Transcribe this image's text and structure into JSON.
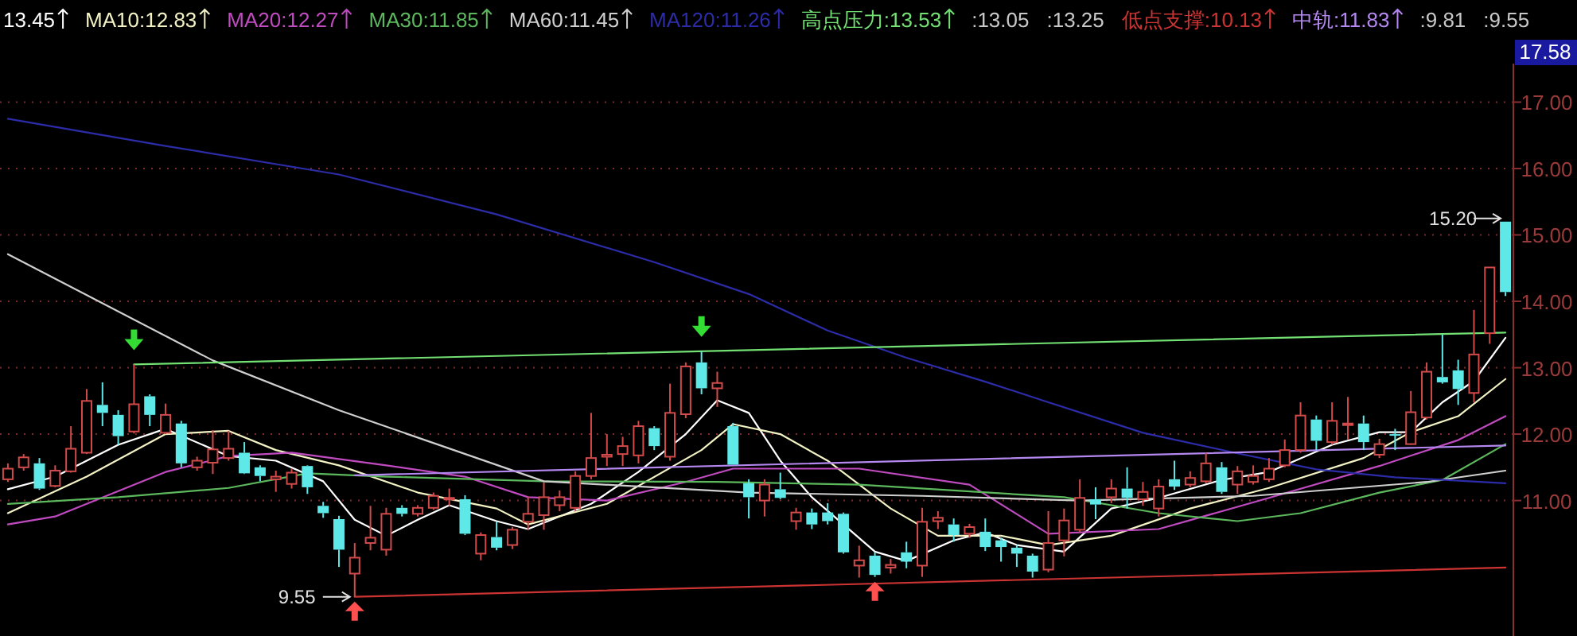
{
  "chart_data": {
    "type": "candlestick",
    "categories": [
      null,
      null,
      null,
      null,
      null,
      null,
      null,
      null,
      null,
      null,
      null,
      null,
      null,
      null,
      null,
      null,
      null,
      null,
      null,
      null,
      null,
      null,
      null,
      null,
      null,
      null,
      null,
      null,
      null,
      null,
      null,
      null,
      null,
      null,
      null,
      null,
      null,
      null,
      null,
      null,
      null,
      null,
      null,
      null,
      null,
      null,
      null,
      null,
      null,
      null,
      null,
      null,
      null,
      null,
      null,
      null,
      null,
      null,
      null,
      null,
      null,
      null,
      null,
      null,
      null,
      null,
      null,
      null,
      null,
      null,
      null,
      null,
      null,
      null,
      null,
      null,
      null,
      null,
      null,
      null,
      null,
      null,
      null,
      null,
      null,
      null,
      null,
      null,
      null,
      null,
      null,
      null,
      null,
      null,
      null,
      null
    ],
    "ohlc": [
      [
        11.32,
        11.56,
        11.28,
        11.48
      ],
      [
        11.5,
        11.7,
        11.45,
        11.65
      ],
      [
        11.56,
        11.64,
        11.16,
        11.18
      ],
      [
        11.22,
        11.53,
        11.2,
        11.45
      ],
      [
        11.44,
        12.12,
        11.42,
        11.78
      ],
      [
        11.72,
        12.68,
        11.7,
        12.5
      ],
      [
        12.44,
        12.78,
        12.12,
        12.32
      ],
      [
        12.29,
        12.36,
        11.84,
        11.97
      ],
      [
        12.04,
        13.05,
        12.01,
        12.45
      ],
      [
        12.57,
        12.6,
        12.12,
        12.29
      ],
      [
        12.02,
        12.46,
        12.0,
        12.29
      ],
      [
        12.16,
        12.2,
        11.5,
        11.56
      ],
      [
        11.5,
        11.66,
        11.45,
        11.6
      ],
      [
        11.57,
        12.06,
        11.4,
        11.77
      ],
      [
        11.64,
        12.05,
        11.6,
        11.78
      ],
      [
        11.72,
        11.88,
        11.4,
        11.41
      ],
      [
        11.5,
        11.53,
        11.29,
        11.37
      ],
      [
        11.32,
        11.45,
        11.13,
        11.36
      ],
      [
        11.25,
        11.48,
        11.18,
        11.42
      ],
      [
        11.52,
        11.53,
        11.1,
        11.2
      ],
      [
        10.92,
        10.98,
        10.74,
        10.81
      ],
      [
        10.72,
        10.77,
        10.0,
        10.26
      ],
      [
        9.9,
        10.36,
        9.55,
        10.14
      ],
      [
        10.36,
        10.92,
        10.25,
        10.44
      ],
      [
        10.26,
        10.89,
        10.17,
        10.8
      ],
      [
        10.89,
        10.93,
        10.76,
        10.8
      ],
      [
        10.8,
        10.93,
        10.76,
        10.89
      ],
      [
        10.89,
        11.12,
        10.86,
        11.07
      ],
      [
        11.04,
        11.18,
        10.92,
        11.04
      ],
      [
        11.02,
        11.08,
        10.48,
        10.5
      ],
      [
        10.2,
        10.52,
        10.1,
        10.48
      ],
      [
        10.45,
        10.68,
        10.25,
        10.29
      ],
      [
        10.33,
        10.6,
        10.27,
        10.56
      ],
      [
        10.68,
        11.06,
        10.56,
        10.8
      ],
      [
        10.78,
        11.27,
        10.56,
        11.05
      ],
      [
        10.93,
        11.15,
        10.84,
        11.05
      ],
      [
        10.89,
        11.44,
        10.84,
        11.37
      ],
      [
        11.37,
        12.32,
        11.32,
        11.64
      ],
      [
        11.66,
        12.0,
        11.52,
        11.69
      ],
      [
        11.7,
        11.96,
        11.52,
        11.82
      ],
      [
        11.68,
        12.2,
        11.56,
        12.12
      ],
      [
        12.09,
        12.12,
        11.76,
        11.82
      ],
      [
        11.66,
        12.76,
        11.6,
        12.32
      ],
      [
        12.3,
        13.08,
        12.24,
        13.02
      ],
      [
        13.08,
        13.25,
        12.6,
        12.69
      ],
      [
        12.69,
        12.94,
        12.41,
        12.77
      ],
      [
        12.12,
        12.17,
        11.54,
        11.54
      ],
      [
        11.26,
        11.32,
        10.73,
        11.05
      ],
      [
        11.0,
        11.32,
        10.76,
        11.24
      ],
      [
        11.17,
        11.42,
        11.02,
        11.04
      ],
      [
        10.69,
        10.89,
        10.56,
        10.82
      ],
      [
        10.82,
        10.88,
        10.57,
        10.64
      ],
      [
        10.82,
        10.96,
        10.64,
        10.69
      ],
      [
        10.8,
        10.82,
        10.2,
        10.22
      ],
      [
        10.02,
        10.32,
        9.84,
        10.1
      ],
      [
        10.17,
        10.22,
        9.85,
        9.88
      ],
      [
        9.99,
        10.12,
        9.9,
        10.03
      ],
      [
        10.22,
        10.38,
        9.98,
        10.08
      ],
      [
        10.02,
        10.89,
        9.85,
        10.68
      ],
      [
        10.69,
        10.84,
        10.57,
        10.74
      ],
      [
        10.64,
        10.73,
        10.38,
        10.48
      ],
      [
        10.5,
        10.65,
        10.44,
        10.6
      ],
      [
        10.53,
        10.73,
        10.24,
        10.3
      ],
      [
        10.4,
        10.44,
        10.08,
        10.3
      ],
      [
        10.29,
        10.33,
        10.0,
        10.2
      ],
      [
        10.17,
        10.2,
        9.84,
        9.93
      ],
      [
        9.96,
        10.84,
        9.92,
        10.36
      ],
      [
        10.4,
        10.88,
        10.16,
        10.7
      ],
      [
        10.56,
        11.32,
        10.52,
        11.04
      ],
      [
        11.02,
        11.2,
        10.72,
        10.94
      ],
      [
        11.05,
        11.32,
        10.96,
        11.18
      ],
      [
        11.18,
        11.5,
        10.88,
        11.04
      ],
      [
        11.02,
        11.28,
        10.92,
        11.13
      ],
      [
        10.88,
        11.32,
        10.76,
        11.21
      ],
      [
        11.32,
        11.6,
        11.16,
        11.21
      ],
      [
        11.24,
        11.44,
        11.2,
        11.34
      ],
      [
        11.29,
        11.72,
        11.26,
        11.56
      ],
      [
        11.5,
        11.58,
        11.1,
        11.13
      ],
      [
        11.24,
        11.52,
        11.1,
        11.44
      ],
      [
        11.28,
        11.53,
        11.24,
        11.37
      ],
      [
        11.32,
        11.64,
        11.28,
        11.48
      ],
      [
        11.53,
        11.92,
        11.5,
        11.76
      ],
      [
        11.76,
        12.48,
        11.72,
        12.28
      ],
      [
        12.22,
        12.28,
        11.76,
        11.9
      ],
      [
        11.88,
        12.48,
        11.84,
        12.2
      ],
      [
        12.15,
        12.56,
        11.92,
        12.16
      ],
      [
        12.16,
        12.28,
        11.76,
        11.88
      ],
      [
        11.69,
        11.93,
        11.64,
        11.85
      ],
      [
        12.0,
        12.08,
        11.76,
        11.98
      ],
      [
        11.85,
        12.65,
        11.84,
        12.33
      ],
      [
        12.25,
        13.08,
        12.22,
        12.94
      ],
      [
        12.86,
        13.5,
        12.76,
        12.78
      ],
      [
        12.96,
        13.12,
        12.44,
        12.68
      ],
      [
        12.62,
        13.87,
        12.48,
        13.2
      ],
      [
        13.52,
        14.51,
        13.36,
        14.51
      ],
      [
        15.2,
        15.2,
        14.08,
        14.14
      ]
    ],
    "series": [
      {
        "name": "13.45",
        "color": "#ffffff",
        "type": "line",
        "values": [
          11.17,
          null,
          null,
          11.36,
          null,
          null,
          null,
          11.84,
          null,
          null,
          12.08,
          null,
          null,
          null,
          11.67,
          null,
          null,
          11.6,
          null,
          null,
          11.29,
          null,
          10.71,
          null,
          10.47,
          null,
          10.71,
          null,
          10.93,
          null,
          null,
          10.69,
          null,
          10.57,
          null,
          null,
          null,
          10.95,
          null,
          null,
          11.43,
          null,
          null,
          12.0,
          null,
          12.51,
          null,
          12.32,
          null,
          11.6,
          null,
          11.05,
          null,
          10.64,
          null,
          10.23,
          null,
          10.09,
          null,
          null,
          10.4,
          null,
          10.52,
          null,
          10.33,
          null,
          null,
          10.23,
          null,
          null,
          10.88,
          null,
          null,
          11.04,
          null,
          null,
          null,
          11.31,
          null,
          null,
          11.43,
          null,
          null,
          null,
          11.84,
          null,
          null,
          12.03,
          null,
          12.03,
          null,
          12.48,
          null,
          12.8,
          null,
          13.45
        ]
      },
      {
        "name": "MA10:12.83",
        "color": "#f2f2c4",
        "type": "line",
        "values": [
          10.81,
          null,
          null,
          null,
          null,
          11.36,
          null,
          null,
          null,
          null,
          12.0,
          null,
          null,
          null,
          12.05,
          null,
          null,
          11.76,
          null,
          null,
          null,
          11.53,
          null,
          null,
          null,
          null,
          11.12,
          null,
          null,
          null,
          null,
          10.88,
          null,
          10.64,
          null,
          null,
          null,
          null,
          10.95,
          null,
          null,
          null,
          null,
          null,
          11.76,
          null,
          12.15,
          null,
          null,
          12.0,
          null,
          null,
          11.6,
          null,
          null,
          null,
          10.88,
          null,
          null,
          10.47,
          null,
          null,
          null,
          10.47,
          null,
          null,
          10.33,
          null,
          null,
          null,
          10.47,
          null,
          null,
          null,
          null,
          10.88,
          null,
          null,
          null,
          null,
          11.19,
          null,
          null,
          null,
          null,
          null,
          11.64,
          null,
          null,
          12.03,
          null,
          null,
          12.27,
          null,
          null,
          12.83
        ]
      },
      {
        "name": "MA20:12.27",
        "color": "#c04ac0",
        "type": "line",
        "values": [
          10.64,
          null,
          null,
          10.76,
          null,
          null,
          null,
          null,
          null,
          null,
          11.43,
          null,
          null,
          null,
          11.67,
          null,
          null,
          null,
          11.72,
          null,
          null,
          null,
          null,
          null,
          11.53,
          null,
          null,
          null,
          null,
          11.36,
          null,
          null,
          null,
          11.05,
          null,
          null,
          null,
          null,
          11.0,
          null,
          null,
          null,
          null,
          11.28,
          null,
          null,
          11.48,
          null,
          null,
          null,
          null,
          null,
          null,
          null,
          11.48,
          null,
          null,
          null,
          null,
          null,
          null,
          11.24,
          null,
          null,
          null,
          null,
          10.5,
          null,
          null,
          null,
          null,
          null,
          null,
          10.57,
          null,
          null,
          null,
          null,
          null,
          null,
          11.04,
          null,
          null,
          null,
          null,
          null,
          null,
          11.52,
          null,
          null,
          null,
          null,
          11.91,
          null,
          null,
          12.27
        ]
      },
      {
        "name": "MA30:11.85",
        "color": "#5cb85c",
        "type": "line",
        "values": [
          10.95,
          null,
          null,
          null,
          null,
          null,
          null,
          11.05,
          null,
          null,
          null,
          null,
          null,
          null,
          11.19,
          null,
          null,
          null,
          null,
          11.41,
          null,
          null,
          null,
          null,
          11.36,
          null,
          null,
          null,
          null,
          null,
          null,
          null,
          null,
          null,
          11.29,
          null,
          null,
          null,
          null,
          null,
          null,
          null,
          null,
          null,
          null,
          11.28,
          null,
          null,
          null,
          null,
          null,
          null,
          null,
          null,
          11.24,
          null,
          null,
          null,
          null,
          null,
          null,
          null,
          null,
          null,
          null,
          null,
          null,
          11.05,
          null,
          null,
          null,
          null,
          null,
          10.81,
          null,
          null,
          null,
          null,
          10.69,
          null,
          null,
          null,
          10.81,
          null,
          null,
          null,
          null,
          11.12,
          null,
          null,
          null,
          11.31,
          null,
          null,
          null,
          11.85
        ]
      },
      {
        "name": "MA60:11.45",
        "color": "#cfcfcf",
        "type": "line",
        "values": [
          14.71,
          null,
          null,
          null,
          null,
          null,
          null,
          null,
          null,
          null,
          null,
          null,
          null,
          13.11,
          null,
          null,
          null,
          null,
          null,
          null,
          null,
          12.36,
          null,
          null,
          null,
          null,
          null,
          null,
          null,
          null,
          null,
          null,
          null,
          null,
          11.29,
          null,
          null,
          null,
          null,
          null,
          null,
          null,
          null,
          null,
          null,
          null,
          null,
          11.12,
          null,
          null,
          null,
          null,
          null,
          null,
          null,
          null,
          null,
          null,
          11.07,
          null,
          null,
          null,
          null,
          null,
          null,
          null,
          null,
          null,
          11.0,
          null,
          null,
          null,
          null,
          null,
          null,
          null,
          null,
          null,
          null,
          11.07,
          null,
          null,
          null,
          null,
          null,
          null,
          null,
          null,
          null,
          null,
          11.28,
          null,
          null,
          null,
          null,
          11.45
        ]
      },
      {
        "name": "MA120:11.26",
        "color": "#2c2ca8",
        "type": "line",
        "values": [
          16.75,
          null,
          null,
          null,
          null,
          null,
          null,
          null,
          null,
          null,
          16.34,
          null,
          null,
          null,
          null,
          null,
          null,
          null,
          null,
          null,
          null,
          15.91,
          null,
          null,
          null,
          null,
          null,
          null,
          null,
          null,
          null,
          15.31,
          null,
          null,
          null,
          null,
          null,
          null,
          null,
          null,
          null,
          14.59,
          null,
          null,
          null,
          null,
          null,
          14.11,
          null,
          null,
          null,
          null,
          13.56,
          null,
          null,
          null,
          null,
          13.15,
          null,
          null,
          null,
          null,
          12.79,
          null,
          null,
          null,
          12.48,
          null,
          null,
          null,
          null,
          null,
          12.02,
          null,
          null,
          null,
          null,
          null,
          11.71,
          null,
          null,
          null,
          null,
          11.47,
          null,
          null,
          null,
          null,
          11.35,
          null,
          null,
          null,
          null,
          null,
          null,
          11.26
        ]
      },
      {
        "name": "高点压力:13.53",
        "color": "#72e072",
        "type": "line",
        "values": [
          null,
          null,
          null,
          null,
          null,
          null,
          null,
          null,
          13.05,
          null,
          null,
          null,
          null,
          null,
          null,
          null,
          null,
          null,
          null,
          null,
          null,
          null,
          null,
          null,
          null,
          null,
          null,
          null,
          null,
          null,
          null,
          null,
          null,
          null,
          null,
          null,
          null,
          null,
          null,
          null,
          null,
          null,
          null,
          null,
          null,
          null,
          null,
          null,
          null,
          null,
          null,
          null,
          null,
          null,
          null,
          null,
          null,
          null,
          null,
          null,
          null,
          null,
          null,
          null,
          null,
          null,
          null,
          null,
          null,
          null,
          null,
          null,
          null,
          null,
          null,
          null,
          null,
          null,
          null,
          null,
          null,
          null,
          null,
          null,
          null,
          null,
          null,
          null,
          null,
          null,
          null,
          null,
          null,
          null,
          null,
          13.53
        ]
      },
      {
        "name": "低点支撑:10.13",
        "color": "#cc3333",
        "type": "line",
        "values": [
          null,
          null,
          null,
          null,
          null,
          null,
          null,
          null,
          null,
          null,
          null,
          null,
          null,
          null,
          null,
          null,
          null,
          null,
          null,
          null,
          null,
          null,
          9.55,
          null,
          null,
          null,
          null,
          null,
          null,
          null,
          null,
          null,
          null,
          null,
          null,
          null,
          null,
          null,
          null,
          null,
          null,
          null,
          null,
          null,
          null,
          null,
          null,
          null,
          null,
          null,
          null,
          null,
          null,
          null,
          null,
          null,
          null,
          null,
          null,
          null,
          null,
          null,
          null,
          null,
          null,
          null,
          null,
          null,
          null,
          null,
          null,
          null,
          null,
          null,
          null,
          null,
          null,
          null,
          null,
          null,
          null,
          null,
          null,
          null,
          null,
          null,
          null,
          null,
          null,
          null,
          null,
          null,
          null,
          null,
          null,
          9.99
        ]
      },
      {
        "name": "中轨:11.83",
        "color": "#b488f0",
        "type": "line",
        "values": [
          null,
          null,
          null,
          null,
          null,
          null,
          null,
          null,
          null,
          null,
          null,
          null,
          null,
          null,
          null,
          null,
          null,
          null,
          null,
          null,
          null,
          null,
          11.38,
          null,
          null,
          null,
          null,
          null,
          null,
          null,
          null,
          null,
          null,
          null,
          null,
          null,
          null,
          null,
          null,
          null,
          null,
          null,
          null,
          null,
          null,
          null,
          null,
          null,
          null,
          null,
          null,
          null,
          null,
          null,
          null,
          null,
          null,
          null,
          null,
          null,
          null,
          null,
          null,
          null,
          null,
          null,
          null,
          null,
          null,
          null,
          null,
          null,
          null,
          null,
          null,
          null,
          null,
          null,
          null,
          null,
          null,
          null,
          null,
          null,
          null,
          null,
          null,
          null,
          null,
          null,
          null,
          null,
          null,
          null,
          null,
          11.83
        ]
      }
    ],
    "ylim": [
      8.96,
      17.58
    ],
    "yticks": [
      {
        "value": 11,
        "label": "11.00"
      },
      {
        "value": 12,
        "label": "12.00"
      },
      {
        "value": 13,
        "label": "13.00"
      },
      {
        "value": 14,
        "label": "14.00"
      },
      {
        "value": 15,
        "label": "15.00"
      },
      {
        "value": 16,
        "label": "16.00"
      },
      {
        "value": 17,
        "label": "17.00"
      },
      {
        "value": 17.58,
        "label": "17.58"
      }
    ],
    "grid": "y",
    "legend": "top left",
    "annotations": [
      ":13.05",
      ":13.25",
      ":9.81",
      ":9.55",
      "9.55",
      "15.20"
    ]
  }
}
